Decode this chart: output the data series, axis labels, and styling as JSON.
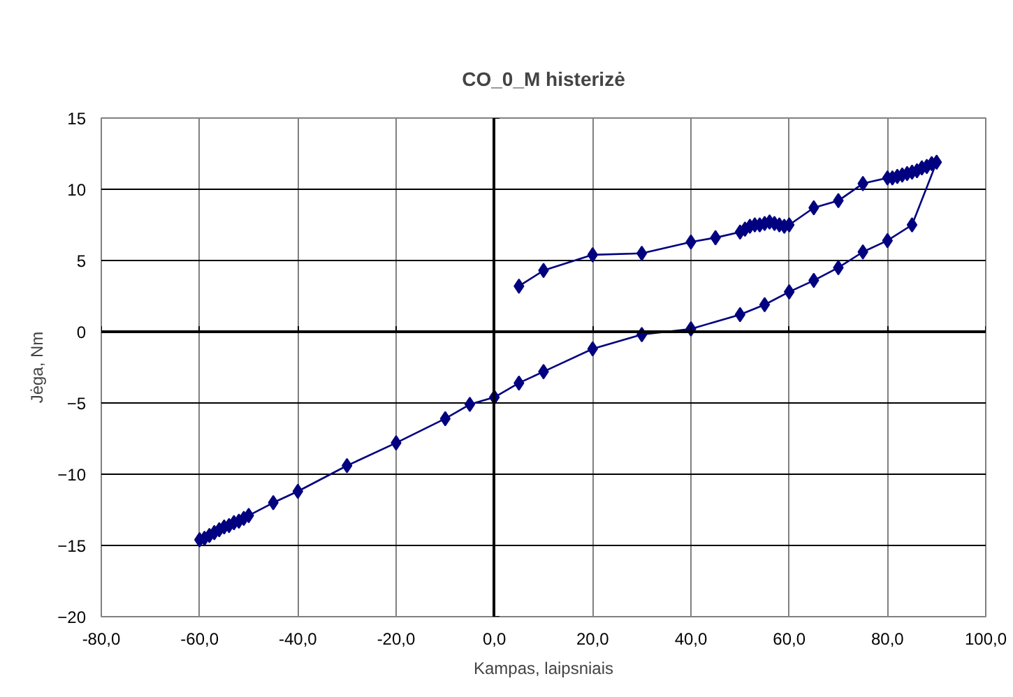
{
  "chart_data": {
    "type": "line",
    "title": "CO_0_M histerizė",
    "xlabel": "Kampas, laipsniais",
    "ylabel": "Jėga, Nm",
    "xlim": [
      -80,
      100
    ],
    "ylim": [
      -20,
      15
    ],
    "xticks": [
      {
        "value": -80,
        "label": "-80,0"
      },
      {
        "value": -60,
        "label": "-60,0"
      },
      {
        "value": -40,
        "label": "-40,0"
      },
      {
        "value": -20,
        "label": "-20,0"
      },
      {
        "value": 0,
        "label": "0,0"
      },
      {
        "value": 20,
        "label": "20,0"
      },
      {
        "value": 40,
        "label": "40,0"
      },
      {
        "value": 60,
        "label": "60,0"
      },
      {
        "value": 80,
        "label": "80,0"
      },
      {
        "value": 100,
        "label": "100,0"
      }
    ],
    "yticks": [
      -20,
      -15,
      -10,
      -5,
      0,
      5,
      10,
      15
    ],
    "grid": true,
    "marker": "diamond",
    "line_style": "solid",
    "series": [
      {
        "color": "#000080",
        "x": [
          5,
          10,
          20,
          30,
          40,
          45,
          50,
          51,
          52,
          53,
          54,
          55,
          56,
          57,
          58,
          59,
          60,
          65,
          70,
          75,
          80,
          81,
          82,
          83,
          84,
          85,
          86,
          87,
          88,
          89,
          90,
          85,
          80,
          75,
          70,
          65,
          60,
          55,
          50,
          40,
          30,
          20,
          10,
          5,
          0,
          -5,
          -10,
          -20,
          -30,
          -40,
          -45,
          -50,
          -51,
          -52,
          -53,
          -54,
          -55,
          -56,
          -57,
          -58,
          -59,
          -60
        ],
        "values": [
          3.2,
          4.3,
          5.4,
          5.5,
          6.3,
          6.6,
          7.0,
          7.2,
          7.4,
          7.5,
          7.5,
          7.6,
          7.7,
          7.6,
          7.5,
          7.4,
          7.5,
          8.7,
          9.2,
          10.4,
          10.8,
          10.8,
          10.9,
          11.0,
          11.1,
          11.2,
          11.3,
          11.5,
          11.6,
          11.8,
          11.9,
          7.5,
          6.4,
          5.6,
          4.5,
          3.6,
          2.8,
          1.9,
          1.2,
          0.2,
          -0.2,
          -1.2,
          -2.8,
          -3.6,
          -4.6,
          -5.1,
          -6.1,
          -7.8,
          -9.4,
          -11.2,
          -12.0,
          -12.9,
          -13.1,
          -13.3,
          -13.4,
          -13.6,
          -13.7,
          -13.9,
          -14.1,
          -14.3,
          -14.5,
          -14.6
        ]
      }
    ]
  }
}
